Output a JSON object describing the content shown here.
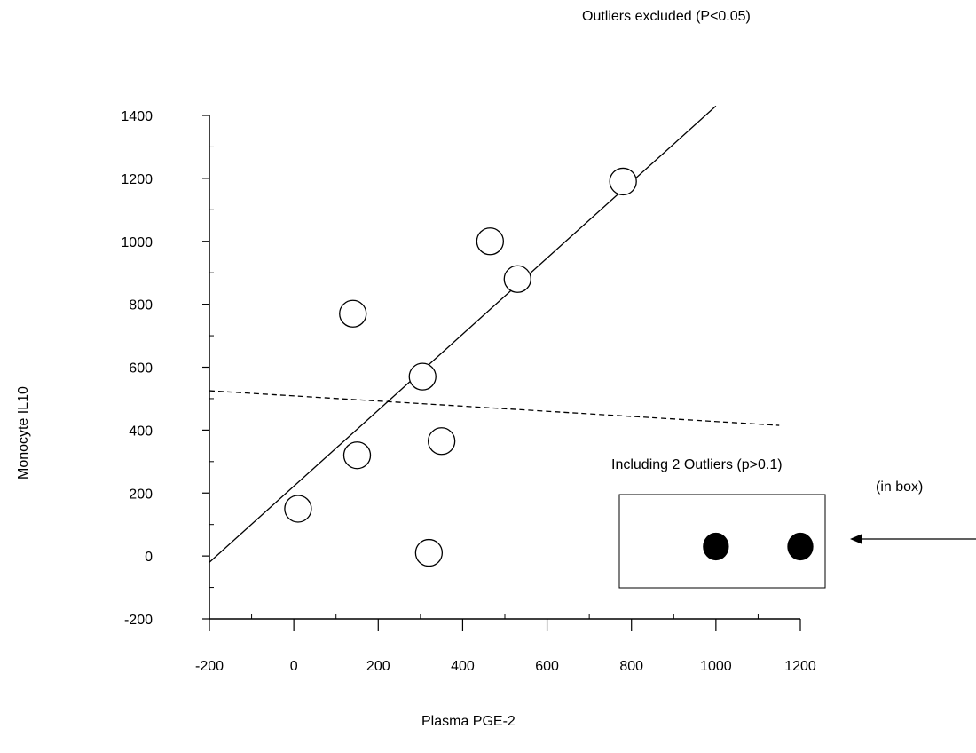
{
  "chart_data": {
    "type": "scatter",
    "title": "",
    "xlabel": "Plasma PGE-2",
    "ylabel": "Monocyte IL10",
    "xlim": [
      -200,
      1200
    ],
    "ylim": [
      -200,
      1400
    ],
    "x_ticks": [
      "-200",
      "0",
      "200",
      "400",
      "600",
      "800",
      "1000",
      "1200"
    ],
    "y_ticks": [
      "1400",
      "1200",
      "1000",
      "800",
      "600",
      "400",
      "200",
      "0",
      "-200"
    ],
    "grid": false,
    "series": [
      {
        "name": "",
        "marker": "open-circle",
        "points": [
          {
            "x": 10,
            "y": 150
          },
          {
            "x": 140,
            "y": 770
          },
          {
            "x": 150,
            "y": 320
          },
          {
            "x": 305,
            "y": 570
          },
          {
            "x": 320,
            "y": 10
          },
          {
            "x": 350,
            "y": 365
          },
          {
            "x": 465,
            "y": 1000
          },
          {
            "x": 530,
            "y": 880
          },
          {
            "x": 780,
            "y": 1190
          }
        ]
      },
      {
        "name": "",
        "marker": "filled-circle",
        "points": [
          {
            "x": 1000,
            "y": 30
          },
          {
            "x": 1200,
            "y": 30
          }
        ]
      }
    ],
    "lines": [
      {
        "style": "solid",
        "points": [
          {
            "x": -200,
            "y": -20
          },
          {
            "x": 1000,
            "y": 1430
          }
        ]
      },
      {
        "style": "dashed",
        "points": [
          {
            "x": -200,
            "y": 525
          },
          {
            "x": 1150,
            "y": 415
          }
        ]
      }
    ],
    "annotations": {
      "excluded": "Outliers excluded (P<0.05)",
      "including": "Including 2 Outliers (p>0.1)",
      "in_box": "(in box)"
    }
  }
}
